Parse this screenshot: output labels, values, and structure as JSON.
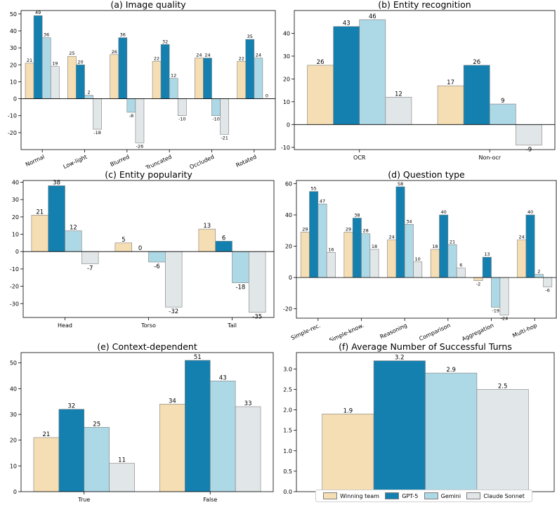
{
  "colors": {
    "Winning team": "#f5deb3",
    "GPT-5": "#1380b0",
    "Gemini": "#add8e6",
    "Claude Sonnet": "#e1e6e8"
  },
  "legend": {
    "items": [
      "Winning team",
      "GPT-5",
      "Gemini",
      "Claude Sonnet"
    ]
  },
  "chart_data": [
    {
      "id": "a",
      "type": "bar",
      "title": "(a) Image quality",
      "categories": [
        "Normal",
        "Low-light",
        "Blurred",
        "Truncated",
        "Occluded",
        "Rotated"
      ],
      "ylim": [
        -30,
        52
      ],
      "yticks": [
        -20,
        -10,
        0,
        10,
        20,
        30,
        40,
        50
      ],
      "rotate_labels": true,
      "series": [
        {
          "name": "Winning team",
          "values": [
            21,
            25,
            26,
            22,
            24,
            22
          ]
        },
        {
          "name": "GPT-5",
          "values": [
            49,
            20,
            36,
            32,
            24,
            35
          ]
        },
        {
          "name": "Gemini",
          "values": [
            36,
            2,
            -8,
            12,
            -10,
            24
          ]
        },
        {
          "name": "Claude Sonnet",
          "values": [
            19,
            -18,
            -26,
            -10,
            -21,
            0
          ]
        }
      ]
    },
    {
      "id": "b",
      "type": "bar",
      "title": "(b) Entity recognition",
      "categories": [
        "OCR",
        "Non-ocr"
      ],
      "ylim": [
        -11,
        50
      ],
      "yticks": [
        -10,
        0,
        10,
        20,
        30,
        40
      ],
      "rotate_labels": false,
      "series": [
        {
          "name": "Winning team",
          "values": [
            26,
            17
          ]
        },
        {
          "name": "GPT-5",
          "values": [
            43,
            26
          ]
        },
        {
          "name": "Gemini",
          "values": [
            46,
            9
          ]
        },
        {
          "name": "Claude Sonnet",
          "values": [
            12,
            -9
          ]
        }
      ]
    },
    {
      "id": "c",
      "type": "bar",
      "title": "(c) Entity popularity",
      "categories": [
        "Head",
        "Torso",
        "Tail"
      ],
      "ylim": [
        -38,
        41
      ],
      "yticks": [
        -30,
        -20,
        -10,
        0,
        10,
        20,
        30,
        40
      ],
      "rotate_labels": false,
      "series": [
        {
          "name": "Winning team",
          "values": [
            21,
            5,
            13
          ]
        },
        {
          "name": "GPT-5",
          "values": [
            38,
            0,
            6
          ]
        },
        {
          "name": "Gemini",
          "values": [
            12,
            -6,
            -18
          ]
        },
        {
          "name": "Claude Sonnet",
          "values": [
            -7,
            -32,
            -35
          ]
        }
      ]
    },
    {
      "id": "d",
      "type": "bar",
      "title": "(d) Question type",
      "categories": [
        "Simple-rec.",
        "Simple-know.",
        "Reasoning",
        "Comparison",
        "Aggregation",
        "Multi-hop"
      ],
      "ylim": [
        -26,
        62
      ],
      "yticks": [
        -20,
        0,
        20,
        40,
        60
      ],
      "rotate_labels": true,
      "series": [
        {
          "name": "Winning team",
          "values": [
            29,
            29,
            24,
            18,
            -2,
            24
          ]
        },
        {
          "name": "GPT-5",
          "values": [
            55,
            38,
            58,
            40,
            13,
            40
          ]
        },
        {
          "name": "Gemini",
          "values": [
            47,
            28,
            34,
            21,
            -19,
            2
          ]
        },
        {
          "name": "Claude Sonnet",
          "values": [
            16,
            18,
            10,
            6,
            -24,
            -6
          ]
        }
      ]
    },
    {
      "id": "e",
      "type": "bar",
      "title": "(e) Context-dependent",
      "categories": [
        "True",
        "False"
      ],
      "ylim": [
        0,
        54
      ],
      "yticks": [
        0,
        10,
        20,
        30,
        40,
        50
      ],
      "rotate_labels": false,
      "series": [
        {
          "name": "Winning team",
          "values": [
            21,
            34
          ]
        },
        {
          "name": "GPT-5",
          "values": [
            32,
            51
          ]
        },
        {
          "name": "Gemini",
          "values": [
            25,
            43
          ]
        },
        {
          "name": "Claude Sonnet",
          "values": [
            11,
            33
          ]
        }
      ]
    },
    {
      "id": "f",
      "type": "bar",
      "title": "(f) Average Number of Successful Turns",
      "categories": [
        ""
      ],
      "ylim": [
        0,
        3.4
      ],
      "yticks": [
        0.0,
        0.5,
        1.0,
        1.5,
        2.0,
        2.5,
        3.0
      ],
      "tick_format": "1dp",
      "rotate_labels": false,
      "series": [
        {
          "name": "Winning team",
          "values": [
            1.9
          ]
        },
        {
          "name": "GPT-5",
          "values": [
            3.2
          ]
        },
        {
          "name": "Gemini",
          "values": [
            2.9
          ]
        },
        {
          "name": "Claude Sonnet",
          "values": [
            2.5
          ]
        }
      ]
    }
  ]
}
